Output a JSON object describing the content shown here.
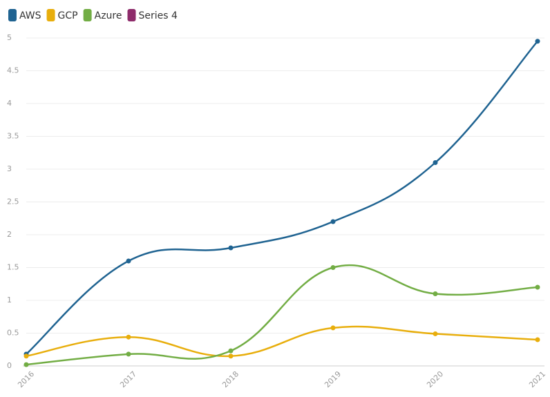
{
  "chart_data": {
    "type": "line",
    "categories": [
      "2016",
      "2017",
      "2018",
      "2019",
      "2020",
      "2021"
    ],
    "series": [
      {
        "name": "AWS",
        "color": "#1f6391",
        "values": [
          0.18,
          1.6,
          1.8,
          2.2,
          3.1,
          4.95
        ]
      },
      {
        "name": "GCP",
        "color": "#e8ae0c",
        "values": [
          0.15,
          0.44,
          0.15,
          0.58,
          0.49,
          0.4
        ]
      },
      {
        "name": "Azure",
        "color": "#72ad44",
        "values": [
          0.02,
          0.18,
          0.23,
          1.5,
          1.1,
          1.2
        ]
      },
      {
        "name": "Series 4",
        "color": "#8e2c6b",
        "values": [
          null,
          null,
          null,
          null,
          null,
          null
        ]
      }
    ],
    "ylim": [
      0,
      5
    ],
    "yticks": [
      0,
      0.5,
      1,
      1.5,
      2,
      2.5,
      3,
      3.5,
      4,
      4.5,
      5
    ],
    "grid": true
  }
}
